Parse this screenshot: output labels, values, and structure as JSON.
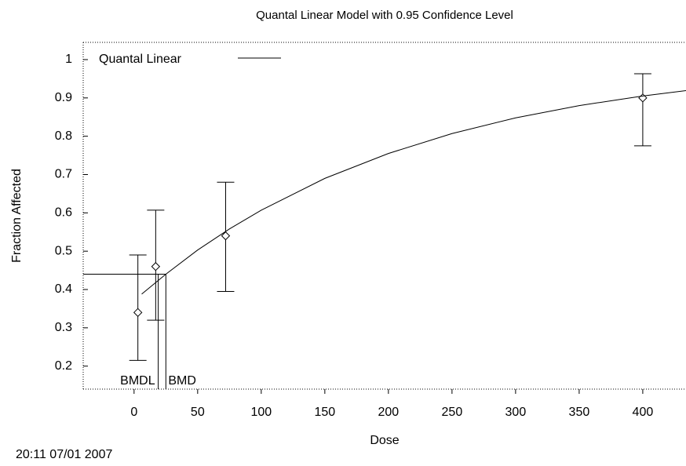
{
  "chart_data": {
    "type": "scatter",
    "title": "Quantal Linear Model with 0.95 Confidence Level",
    "xlabel": "Dose",
    "ylabel": "Fraction Affected",
    "footer": "20:11 07/01 2007",
    "xlim": [
      -40,
      434
    ],
    "ylim": [
      0.14,
      1.045
    ],
    "xticks": [
      0,
      50,
      100,
      150,
      200,
      250,
      300,
      350,
      400
    ],
    "yticks": [
      0.2,
      0.3,
      0.4,
      0.5,
      0.6,
      0.7,
      0.8,
      0.9,
      1
    ],
    "points": {
      "x": [
        3,
        17,
        72,
        400
      ],
      "values": [
        0.34,
        0.46,
        0.54,
        0.9
      ],
      "lower": [
        0.215,
        0.32,
        0.395,
        0.775
      ],
      "upper": [
        0.49,
        0.607,
        0.68,
        0.963
      ],
      "color": "#000000"
    },
    "series": [
      {
        "name": "Quantal Linear",
        "color": "#000000",
        "x": [
          6,
          25,
          50,
          75,
          100,
          150,
          200,
          250,
          300,
          350,
          400,
          434
        ],
        "values": [
          0.388,
          0.44,
          0.503,
          0.558,
          0.607,
          0.69,
          0.755,
          0.807,
          0.848,
          0.88,
          0.905,
          0.919
        ]
      }
    ],
    "bmr_level": 0.44,
    "annotations": [
      {
        "label": "BMDL",
        "x": 19
      },
      {
        "label": "BMD",
        "x": 25
      }
    ]
  }
}
